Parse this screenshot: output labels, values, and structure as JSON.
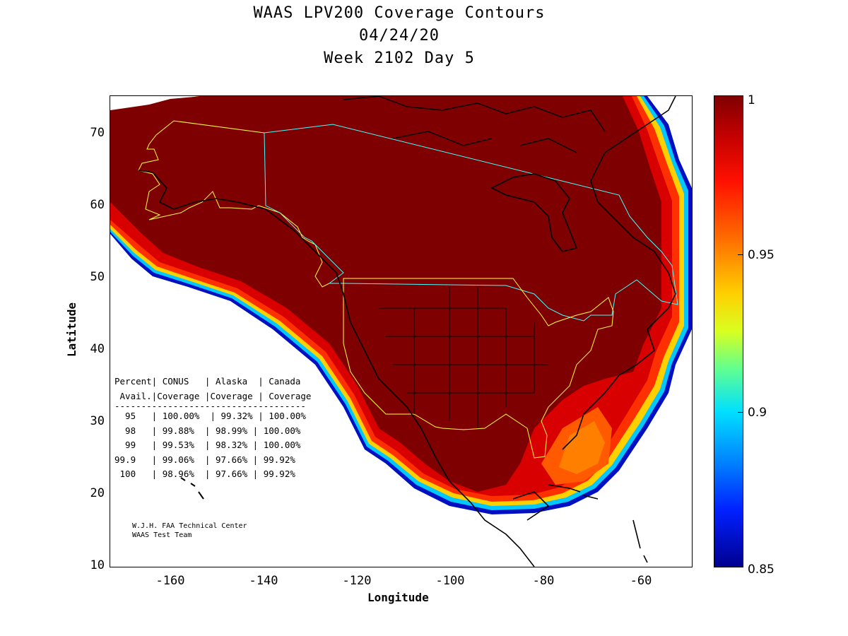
{
  "header": {
    "title": "WAAS LPV200 Coverage Contours",
    "date": "04/24/20",
    "week": "Week 2102 Day 5"
  },
  "axes": {
    "xlabel": "Longitude",
    "ylabel": "Latitude",
    "xticks": [
      "-160",
      "-140",
      "-120",
      "-100",
      "-80",
      "-60"
    ],
    "yticks": [
      "70",
      "60",
      "50",
      "40",
      "30",
      "20",
      "10"
    ]
  },
  "colorbar": {
    "ticks": [
      "1",
      "0.95",
      "0.9",
      "0.85"
    ],
    "colors": [
      "#7f0000",
      "#ff1000",
      "#ffd000",
      "#00e0ff",
      "#00008f"
    ]
  },
  "table": {
    "header1": "Percent| CONUS   | Alaska  | Canada",
    "header2": " Avail.|Coverage |Coverage | Coverage",
    "rule": "------------------------------------",
    "rows": [
      "  95   | 100.00%  | 99.32% | 100.00%",
      "  98   | 99.88%  | 98.99% | 100.00%",
      "  99   | 99.53%  | 98.32% | 100.00%",
      "99.9   | 99.06%  | 97.66% | 99.92%",
      " 100   | 98.96%  | 97.66% | 99.92%"
    ]
  },
  "credit": {
    "line1": "W.J.H. FAA Technical Center",
    "line2": "WAAS Test Team"
  },
  "chart_data": {
    "type": "heatmap",
    "title": "WAAS LPV200 Coverage Contours",
    "xlabel": "Longitude",
    "ylabel": "Latitude",
    "xlim": [
      -175,
      -50
    ],
    "ylim": [
      10,
      75
    ],
    "colorbar_range": [
      0.85,
      1.0
    ],
    "coverage_table": {
      "columns": [
        "Percent Avail.",
        "CONUS Coverage",
        "Alaska Coverage",
        "Canada Coverage"
      ],
      "rows": [
        [
          "95",
          "100.00%",
          "99.32%",
          "100.00%"
        ],
        [
          "98",
          "99.88%",
          "98.99%",
          "100.00%"
        ],
        [
          "99",
          "99.53%",
          "98.32%",
          "100.00%"
        ],
        [
          "99.9",
          "99.06%",
          "97.66%",
          "99.92%"
        ],
        [
          "100",
          "98.96%",
          "97.66%",
          "99.92%"
        ]
      ]
    }
  }
}
